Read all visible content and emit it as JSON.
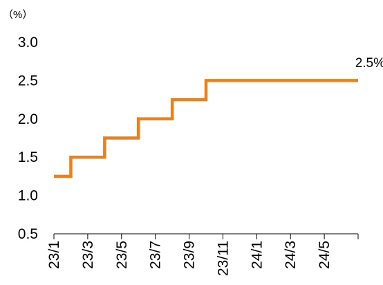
{
  "chart_data": {
    "type": "line",
    "step": true,
    "unit_label": "（%）",
    "x_tick_labels": [
      "23/1",
      "23/3",
      "23/5",
      "23/7",
      "23/9",
      "23/11",
      "24/1",
      "24/3",
      "24/5"
    ],
    "y_tick_labels": [
      "0.5",
      "1.0",
      "1.5",
      "2.0",
      "2.5",
      "3.0"
    ],
    "ylim": [
      0.5,
      3.0
    ],
    "xlim": [
      "2023-01",
      "2024-07"
    ],
    "grid": false,
    "series": [
      {
        "color": "#E8821E",
        "points": [
          {
            "x": "2023-01",
            "y": 1.25
          },
          {
            "x": "2023-02",
            "y": 1.5
          },
          {
            "x": "2023-04",
            "y": 1.75
          },
          {
            "x": "2023-06",
            "y": 2.0
          },
          {
            "x": "2023-08",
            "y": 2.25
          },
          {
            "x": "2023-10",
            "y": 2.5
          },
          {
            "x": "2024-07",
            "y": 2.5
          }
        ]
      }
    ],
    "end_label": "2.5%"
  }
}
